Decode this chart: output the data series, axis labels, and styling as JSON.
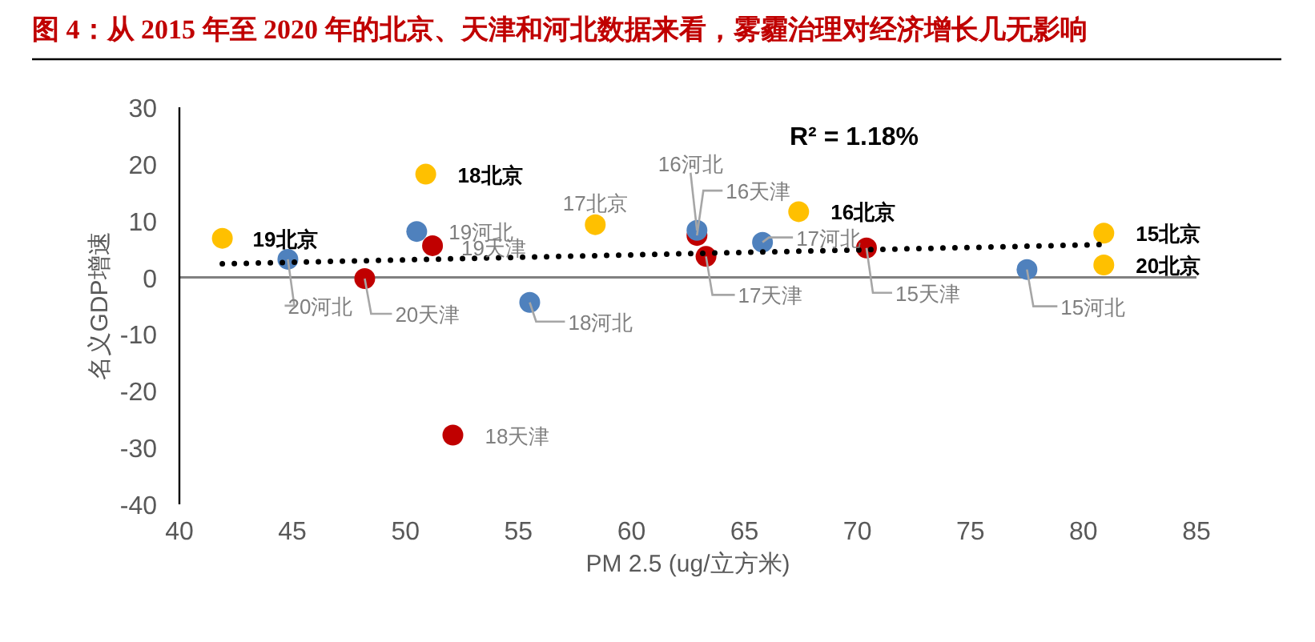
{
  "chart_data": {
    "type": "scatter",
    "title": "图 4：从 2015 年至 2020 年的北京、天津和河北数据来看，雾霾治理对经济增长几无影响",
    "xlabel": "PM 2.5  (ug/立方米)",
    "ylabel": "名义GDP增速",
    "xlim": [
      40,
      85
    ],
    "ylim": [
      -40,
      30
    ],
    "xticks": [
      40,
      45,
      50,
      55,
      60,
      65,
      70,
      75,
      80,
      85
    ],
    "yticks": [
      -40,
      -30,
      -20,
      -10,
      0,
      10,
      20,
      30
    ],
    "marker": "circle",
    "series": [
      {
        "color": "#ffc000",
        "x": [
          41.9,
          50.9,
          58.4,
          67.4,
          80.9,
          80.9
        ],
        "values": [
          6.9,
          18.2,
          9.3,
          11.6,
          7.8,
          2.2
        ]
      },
      {
        "color": "#c00000",
        "x": [
          51.2,
          48.2,
          52.1,
          63.3,
          62.9,
          70.4
        ],
        "values": [
          5.6,
          -0.2,
          -27.8,
          3.7,
          7.4,
          5.2
        ]
      },
      {
        "color": "#4f81bd",
        "x": [
          44.8,
          50.5,
          55.5,
          65.8,
          62.9,
          77.5
        ],
        "values": [
          3.2,
          8.1,
          -4.4,
          6.2,
          8.3,
          1.4
        ]
      },
      {
        "type": "line",
        "color": "#000000",
        "line_style": "dotted",
        "marker": "none",
        "x": [
          41.9,
          80.9
        ],
        "values": [
          2.4,
          5.8
        ]
      }
    ],
    "annotations": [
      {
        "text": "19北京",
        "x": 41.9,
        "y": 6.9
      },
      {
        "text": "18北京",
        "x": 50.9,
        "y": 18.2
      },
      {
        "text": "17北京",
        "x": 58.4,
        "y": 9.3
      },
      {
        "text": "16北京",
        "x": 67.4,
        "y": 11.6
      },
      {
        "text": "15北京",
        "x": 80.9,
        "y": 7.8
      },
      {
        "text": "20北京",
        "x": 80.9,
        "y": 2.2
      },
      {
        "text": "19天津",
        "x": 51.2,
        "y": 5.6
      },
      {
        "text": "20天津",
        "x": 48.2,
        "y": -0.2
      },
      {
        "text": "18天津",
        "x": 52.1,
        "y": -27.8
      },
      {
        "text": "17天津",
        "x": 63.3,
        "y": 3.7
      },
      {
        "text": "16天津",
        "x": 62.9,
        "y": 7.4
      },
      {
        "text": "15天津",
        "x": 70.4,
        "y": 5.2
      },
      {
        "text": "20河北",
        "x": 44.8,
        "y": 3.2
      },
      {
        "text": "19河北",
        "x": 50.5,
        "y": 8.1
      },
      {
        "text": "18河北",
        "x": 55.5,
        "y": -4.4
      },
      {
        "text": "17河北",
        "x": 65.8,
        "y": 6.2
      },
      {
        "text": "16河北",
        "x": 62.9,
        "y": 8.3
      },
      {
        "text": "15河北",
        "x": 77.5,
        "y": 1.4
      },
      "R² = 1.18%"
    ]
  }
}
